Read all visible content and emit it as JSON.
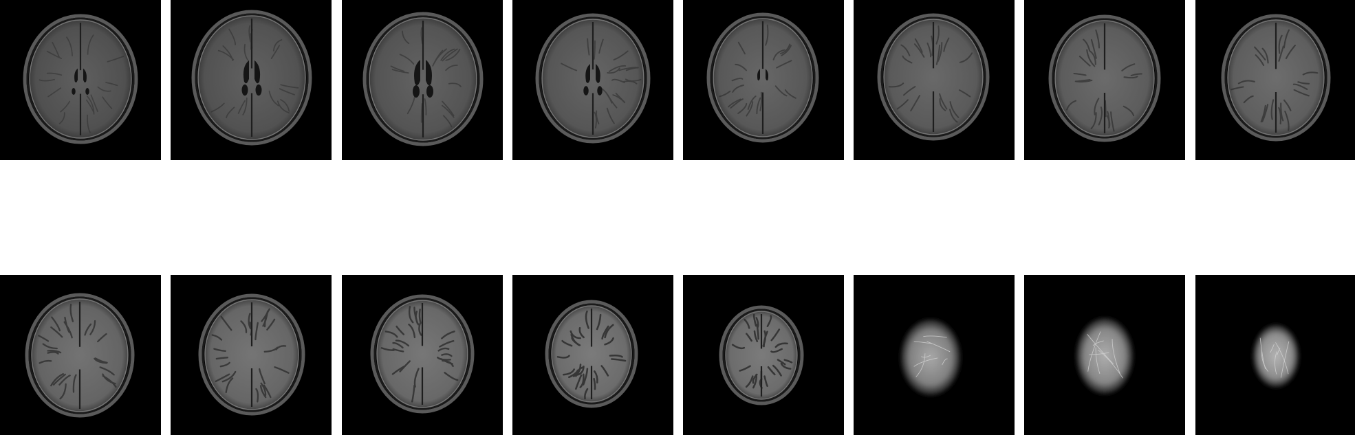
{
  "layout": {
    "rows": 2,
    "columns": 8
  },
  "colors": {
    "background": "#ffffff",
    "tile_background": "#000000"
  },
  "slices": [
    {
      "row": 0,
      "col": 0,
      "content": "axial-flair-brain-ventricles-low"
    },
    {
      "row": 0,
      "col": 1,
      "content": "axial-flair-brain-ventricles"
    },
    {
      "row": 0,
      "col": 2,
      "content": "axial-flair-brain-ventricles"
    },
    {
      "row": 0,
      "col": 3,
      "content": "axial-flair-brain-ventricles-upper"
    },
    {
      "row": 0,
      "col": 4,
      "content": "axial-flair-brain-ventricles-top"
    },
    {
      "row": 0,
      "col": 5,
      "content": "axial-flair-brain-centrum"
    },
    {
      "row": 0,
      "col": 6,
      "content": "axial-flair-brain-centrum"
    },
    {
      "row": 0,
      "col": 7,
      "content": "axial-flair-brain-high"
    },
    {
      "row": 1,
      "col": 0,
      "content": "axial-flair-brain-convexity"
    },
    {
      "row": 1,
      "col": 1,
      "content": "axial-flair-brain-convexity"
    },
    {
      "row": 1,
      "col": 2,
      "content": "axial-flair-brain-convexity"
    },
    {
      "row": 1,
      "col": 3,
      "content": "axial-flair-brain-vertex"
    },
    {
      "row": 1,
      "col": 4,
      "content": "axial-flair-brain-vertex"
    },
    {
      "row": 1,
      "col": 5,
      "content": "axial-flair-brain-vertex-scalp"
    },
    {
      "row": 1,
      "col": 6,
      "content": "axial-flair-brain-vertex-scalp"
    },
    {
      "row": 1,
      "col": 7,
      "content": "axial-flair-brain-top-scalp"
    }
  ]
}
